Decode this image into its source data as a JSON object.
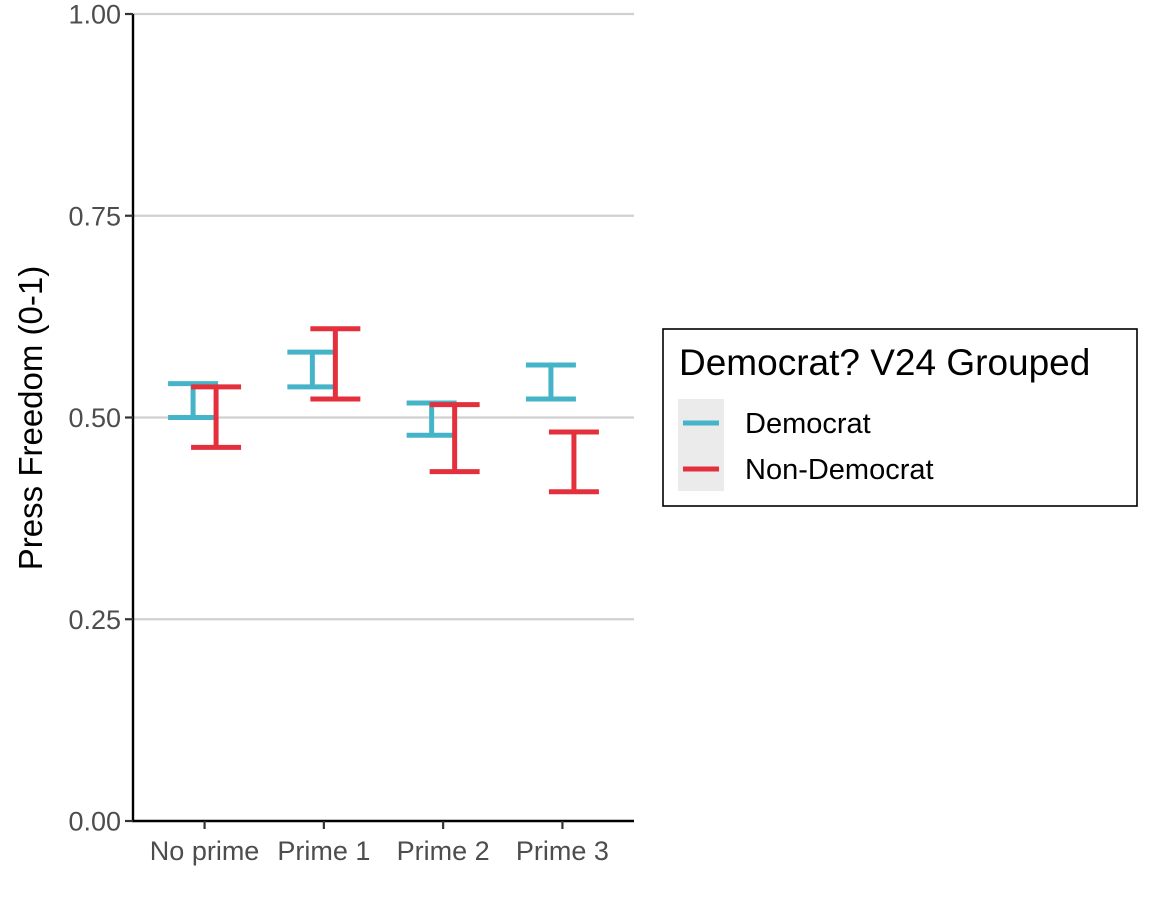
{
  "chart_data": {
    "type": "errorbar",
    "title": "",
    "xlabel": "",
    "ylabel": "Press Freedom (0-1)",
    "ylim": [
      0,
      1
    ],
    "yticks": [
      "0.00",
      "0.25",
      "0.50",
      "0.75",
      "1.00"
    ],
    "categories": [
      "No prime",
      "Prime 1",
      "Prime 2",
      "Prime 3"
    ],
    "grid": "horizontal major",
    "legend": {
      "title": "Democrat? V24 Grouped",
      "placement": "right"
    },
    "series": [
      {
        "name": "Democrat",
        "color": "#45B4C9",
        "lower": [
          0.5,
          0.538,
          0.478,
          0.523
        ],
        "upper": [
          0.542,
          0.581,
          0.518,
          0.565
        ]
      },
      {
        "name": "Non-Democrat",
        "color": "#E3303C",
        "lower": [
          0.463,
          0.523,
          0.433,
          0.408
        ],
        "upper": [
          0.538,
          0.61,
          0.516,
          0.482
        ]
      }
    ]
  }
}
